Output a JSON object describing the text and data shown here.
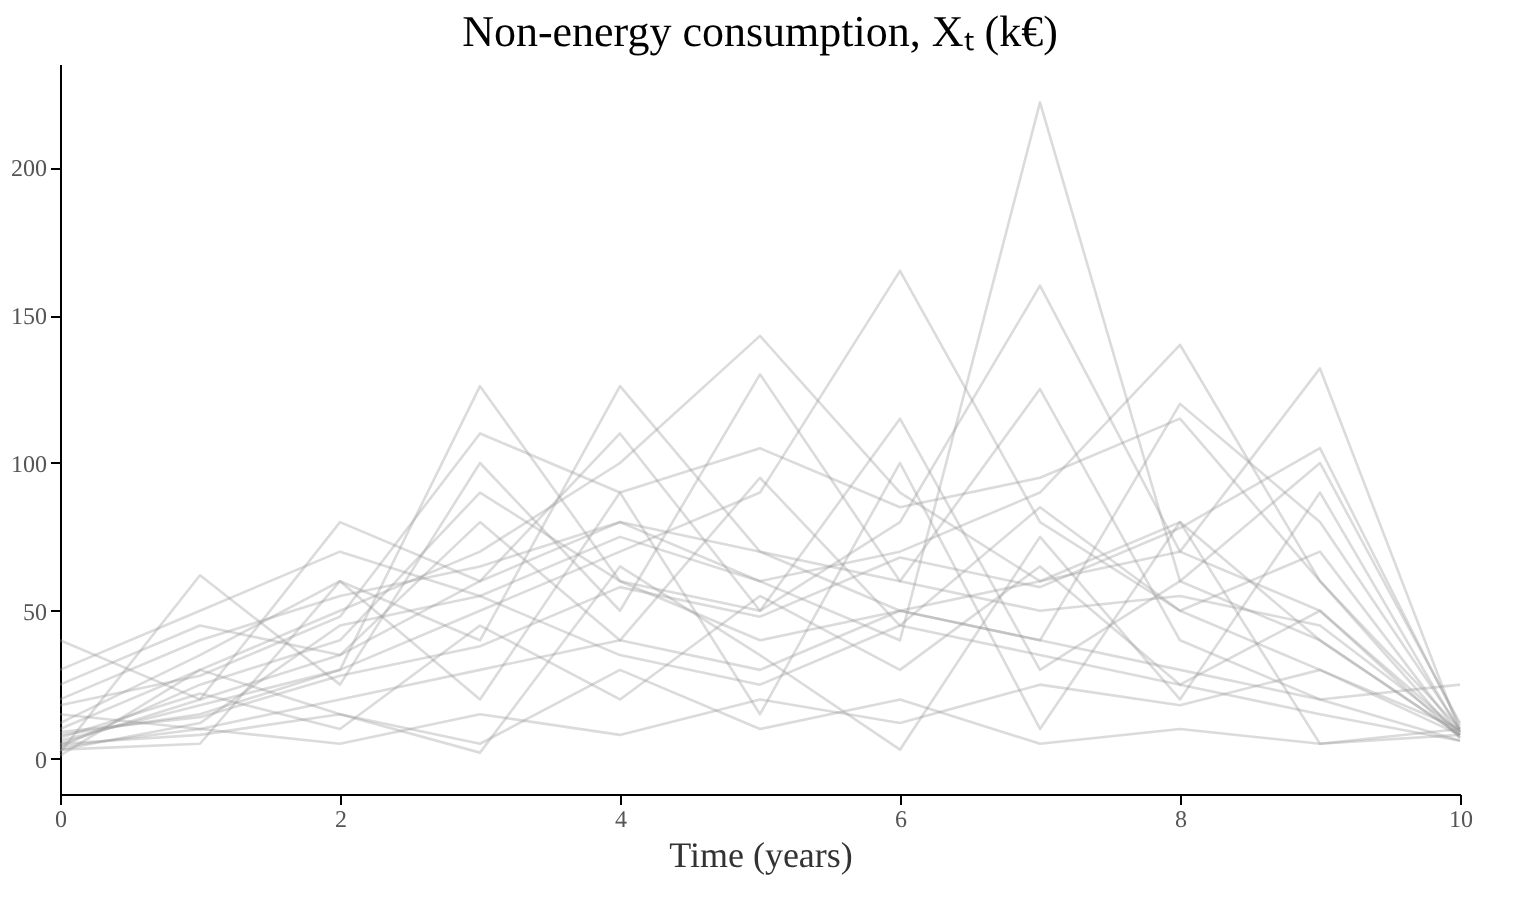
{
  "chart_data": {
    "type": "line",
    "title": "Non-energy consumption, Xₜ (k€)",
    "xlabel": "Time (years)",
    "x": [
      0,
      1,
      2,
      3,
      4,
      5,
      6,
      7,
      8,
      9,
      10
    ],
    "xlim": [
      0,
      10
    ],
    "xticks": [
      0,
      2,
      4,
      6,
      8,
      10
    ],
    "ylim": [
      -12,
      235
    ],
    "yticks": [
      0,
      50,
      100,
      150,
      200
    ],
    "grid": false,
    "legend": false,
    "marker": "none",
    "line_style": "solid",
    "series": [
      {
        "color": "#999999",
        "values": [
          5,
          20,
          35,
          60,
          80,
          60,
          40,
          222,
          60,
          40,
          8
        ]
      },
      {
        "color": "#999999",
        "values": [
          8,
          15,
          30,
          50,
          70,
          90,
          165,
          80,
          50,
          30,
          10
        ]
      },
      {
        "color": "#999999",
        "values": [
          4,
          25,
          40,
          90,
          60,
          50,
          80,
          160,
          70,
          50,
          9
        ]
      },
      {
        "color": "#999999",
        "values": [
          10,
          30,
          50,
          70,
          100,
          143,
          90,
          60,
          80,
          40,
          8
        ]
      },
      {
        "color": "#999999",
        "values": [
          3,
          12,
          45,
          55,
          75,
          60,
          70,
          90,
          140,
          60,
          7
        ]
      },
      {
        "color": "#999999",
        "values": [
          6,
          18,
          30,
          126,
          60,
          40,
          50,
          60,
          70,
          132,
          9
        ]
      },
      {
        "color": "#999999",
        "values": [
          12,
          35,
          60,
          40,
          126,
          70,
          50,
          40,
          120,
          80,
          10
        ]
      },
      {
        "color": "#999999",
        "values": [
          40,
          20,
          80,
          60,
          110,
          50,
          115,
          30,
          60,
          100,
          12
        ]
      },
      {
        "color": "#999999",
        "values": [
          2,
          62,
          25,
          100,
          50,
          130,
          60,
          125,
          40,
          20,
          6
        ]
      },
      {
        "color": "#999999",
        "values": [
          15,
          10,
          20,
          30,
          40,
          30,
          50,
          40,
          30,
          20,
          25
        ]
      },
      {
        "color": "#999999",
        "values": [
          5,
          8,
          15,
          5,
          30,
          10,
          20,
          5,
          10,
          5,
          8
        ]
      },
      {
        "color": "#999999",
        "values": [
          20,
          40,
          55,
          65,
          80,
          70,
          60,
          50,
          55,
          45,
          9
        ]
      },
      {
        "color": "#999999",
        "values": [
          7,
          22,
          10,
          45,
          20,
          55,
          30,
          65,
          25,
          50,
          7
        ]
      },
      {
        "color": "#999999",
        "values": [
          3,
          5,
          60,
          20,
          90,
          15,
          100,
          10,
          80,
          5,
          10
        ]
      },
      {
        "color": "#999999",
        "values": [
          25,
          45,
          35,
          80,
          40,
          95,
          45,
          85,
          50,
          70,
          8
        ]
      },
      {
        "color": "#999999",
        "values": [
          9,
          14,
          28,
          38,
          58,
          48,
          68,
          58,
          78,
          105,
          11
        ]
      },
      {
        "color": "#999999",
        "values": [
          1,
          30,
          15,
          2,
          65,
          35,
          3,
          75,
          20,
          90,
          9
        ]
      },
      {
        "color": "#999999",
        "values": [
          30,
          50,
          70,
          55,
          35,
          25,
          45,
          35,
          25,
          15,
          6
        ]
      },
      {
        "color": "#999999",
        "values": [
          4,
          10,
          5,
          15,
          8,
          20,
          12,
          25,
          18,
          30,
          8
        ]
      },
      {
        "color": "#999999",
        "values": [
          18,
          28,
          48,
          110,
          90,
          105,
          85,
          95,
          115,
          60,
          10
        ]
      }
    ]
  }
}
